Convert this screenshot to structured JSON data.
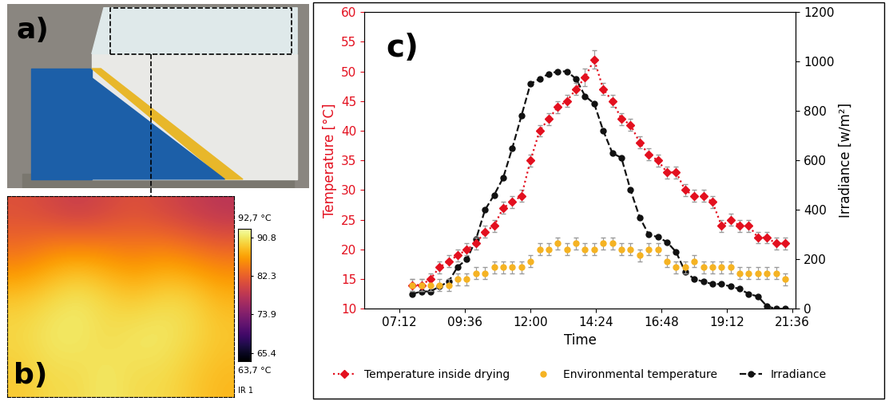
{
  "chart_data": {
    "type": "line",
    "panel_label": "c)",
    "x_label": "Time",
    "y_label": "Temperature [°C]",
    "y2_label": "Irradiance [w/m²]",
    "x": [
      460,
      480,
      500,
      520,
      540,
      560,
      580,
      600,
      620,
      640,
      660,
      680,
      700,
      720,
      740,
      760,
      780,
      800,
      820,
      840,
      860,
      880,
      900,
      920,
      940,
      960,
      980,
      1000,
      1020,
      1040,
      1060,
      1080,
      1100,
      1120,
      1140,
      1160,
      1180,
      1200,
      1220,
      1240,
      1260,
      1280
    ],
    "xlim": [
      355,
      1303
    ],
    "xticks": [
      {
        "value": 432,
        "label": "07:12"
      },
      {
        "value": 576,
        "label": "09:36"
      },
      {
        "value": 720,
        "label": "12:00"
      },
      {
        "value": 864,
        "label": "14:24"
      },
      {
        "value": 1008,
        "label": "16:48"
      },
      {
        "value": 1152,
        "label": "19:12"
      },
      {
        "value": 1296,
        "label": "21:36"
      }
    ],
    "ylim": [
      10,
      60
    ],
    "yticks": [
      10,
      15,
      20,
      25,
      30,
      35,
      40,
      45,
      50,
      55,
      60
    ],
    "y2lim": [
      0,
      1200
    ],
    "y2ticks": [
      0,
      200,
      400,
      600,
      800,
      1000,
      1200
    ],
    "legend": "bottom",
    "series": [
      {
        "name": "Temperature inside drying",
        "color": "#e3101f",
        "marker": "diamond",
        "line_style": "dotted",
        "values": [
          14,
          14,
          15,
          17,
          18,
          19,
          20,
          21,
          23,
          24,
          27,
          28,
          29,
          35,
          40,
          42,
          44,
          45,
          47,
          49,
          52,
          47,
          45,
          42,
          41,
          38,
          36,
          35,
          33,
          33,
          30,
          29,
          29,
          28,
          24,
          25,
          24,
          24,
          22,
          22,
          21,
          21
        ],
        "errors": [
          1,
          1,
          1,
          1,
          1,
          1,
          1,
          1,
          1,
          1,
          1,
          1,
          1,
          1,
          1,
          1,
          1,
          1,
          1,
          1.5,
          1.5,
          1,
          1,
          1,
          1,
          1,
          1,
          1,
          1,
          1,
          1,
          1,
          1,
          1,
          1,
          1,
          1,
          1,
          1,
          1,
          1,
          1
        ]
      },
      {
        "name": "Environmental temperature",
        "color": "#f5b323",
        "marker": "circle",
        "line_style": "none",
        "values": [
          14,
          14,
          14,
          14,
          14,
          15,
          15,
          16,
          16,
          17,
          17,
          17,
          17,
          18,
          20,
          20,
          21,
          20,
          21,
          20,
          20,
          21,
          21,
          20,
          20,
          19,
          20,
          20,
          18,
          17,
          17,
          18,
          17,
          17,
          17,
          17,
          16,
          16,
          16,
          16,
          16,
          15
        ],
        "errors": [
          1,
          1,
          1,
          1,
          1,
          1,
          1,
          1,
          1,
          1,
          1,
          1,
          1,
          1,
          1,
          1,
          1,
          1,
          1,
          1,
          1,
          1,
          1,
          1,
          1,
          1,
          1,
          1,
          1,
          1,
          1,
          1,
          1,
          1,
          1,
          1,
          1,
          1,
          1,
          1,
          1,
          1
        ]
      },
      {
        "name": "Irradiance",
        "color": "#111111",
        "marker": "circle",
        "line_style": "dashed",
        "axis": "y2",
        "values": [
          60,
          70,
          70,
          90,
          110,
          170,
          200,
          280,
          400,
          460,
          530,
          650,
          780,
          910,
          930,
          950,
          960,
          960,
          930,
          860,
          830,
          720,
          630,
          610,
          480,
          370,
          300,
          290,
          270,
          230,
          150,
          120,
          110,
          100,
          100,
          90,
          80,
          60,
          50,
          10,
          0,
          0
        ]
      }
    ]
  },
  "panel_a": {
    "label": "a)"
  },
  "panel_b": {
    "label": "b)",
    "image_cells": [
      [
        81,
        80,
        79,
        80,
        81,
        80,
        79,
        78
      ],
      [
        84,
        86,
        87,
        86,
        85,
        86,
        85,
        84
      ],
      [
        89,
        90,
        91,
        90,
        89,
        90,
        90,
        88
      ],
      [
        90,
        91,
        91,
        90,
        91,
        91,
        90,
        89
      ],
      [
        89,
        90,
        90,
        91,
        90,
        90,
        89,
        88
      ]
    ],
    "colorbar": {
      "range": [
        63.7,
        92.7
      ],
      "range_labels": [
        "63,7 °C",
        "92,7 °C"
      ],
      "ticks": [
        90.8,
        82.3,
        73.9,
        65.4
      ],
      "source_label": "IR 1"
    }
  }
}
